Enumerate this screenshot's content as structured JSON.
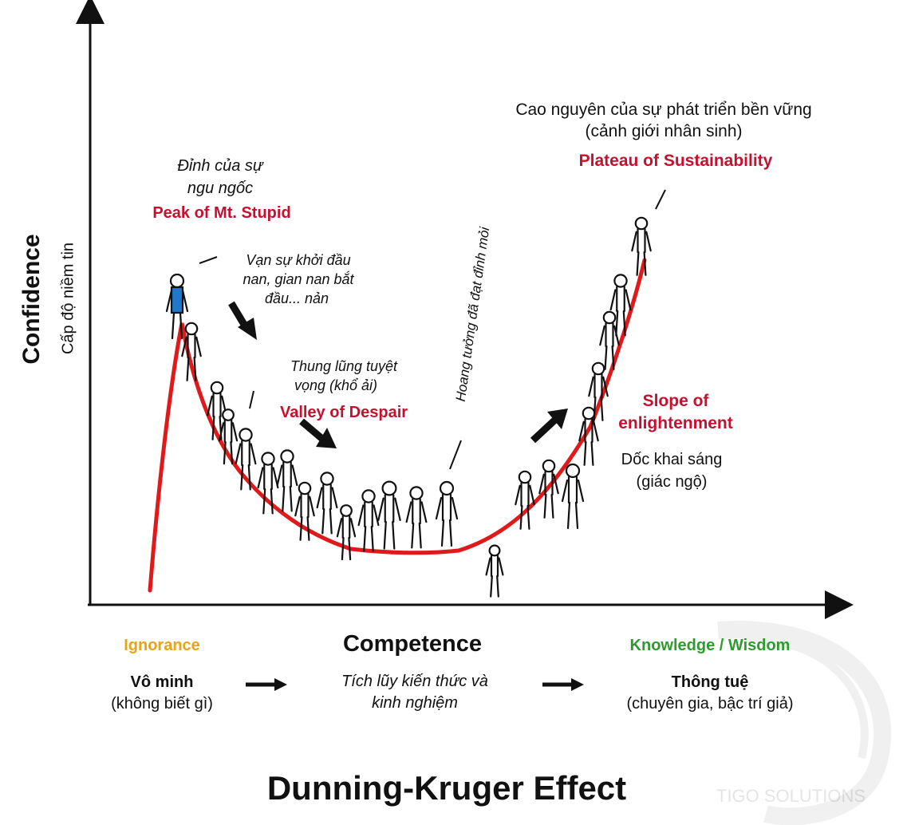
{
  "axes": {
    "y_label": "Confidence",
    "y_sublabel": "Cấp độ niềm tin"
  },
  "annotations": {
    "peak_vi_1": "Đỉnh của sự",
    "peak_vi_2": "ngu ngốc",
    "peak_en": "Peak of Mt. Stupid",
    "start_vi_1": "Vạn sự khởi đầu",
    "start_vi_2": "nan, gian nan bắt",
    "start_vi_3": "đầu... nản",
    "valley_vi_1": "Thung lũng tuyệt",
    "valley_vi_2": "vọng (khổ ải)",
    "valley_en": "Valley of Despair",
    "illusion_vi": "Hoang tưởng đã đạt đỉnh mỏi",
    "plateau_vi_1": "Cao nguyên của sự phát triển bền vững",
    "plateau_vi_2": "(cảnh giới nhân sinh)",
    "plateau_en": "Plateau of Sustainability",
    "slope_en_1": "Slope of",
    "slope_en_2": "enlightenment",
    "slope_vi_1": "Dốc khai sáng",
    "slope_vi_2": "(giác ngộ)"
  },
  "stages": {
    "ignorance_en": "Ignorance",
    "ignorance_vi": "Vô minh",
    "ignorance_desc": "(không biết gì)",
    "competence_en": "Competence",
    "competence_vi_1": "Tích lũy kiến thức và",
    "competence_vi_2": "kinh nghiệm",
    "wisdom_en": "Knowledge / Wisdom",
    "wisdom_vi": "Thông tuệ",
    "wisdom_desc": "(chuyên gia, bậc trí giả)"
  },
  "title": "Dunning-Kruger Effect",
  "watermark": "TIGO SOLUTIONS",
  "colors": {
    "curve": "#e01a1a",
    "annotation_red": "#c8102e",
    "ignorance": "#e8a317",
    "wisdom": "#2e9b2e",
    "shirt": "#1f78c8"
  },
  "icons": [
    "arrow-down-right-icon",
    "arrow-right-icon",
    "arrow-up-right-icon",
    "stick-figure-icon"
  ]
}
